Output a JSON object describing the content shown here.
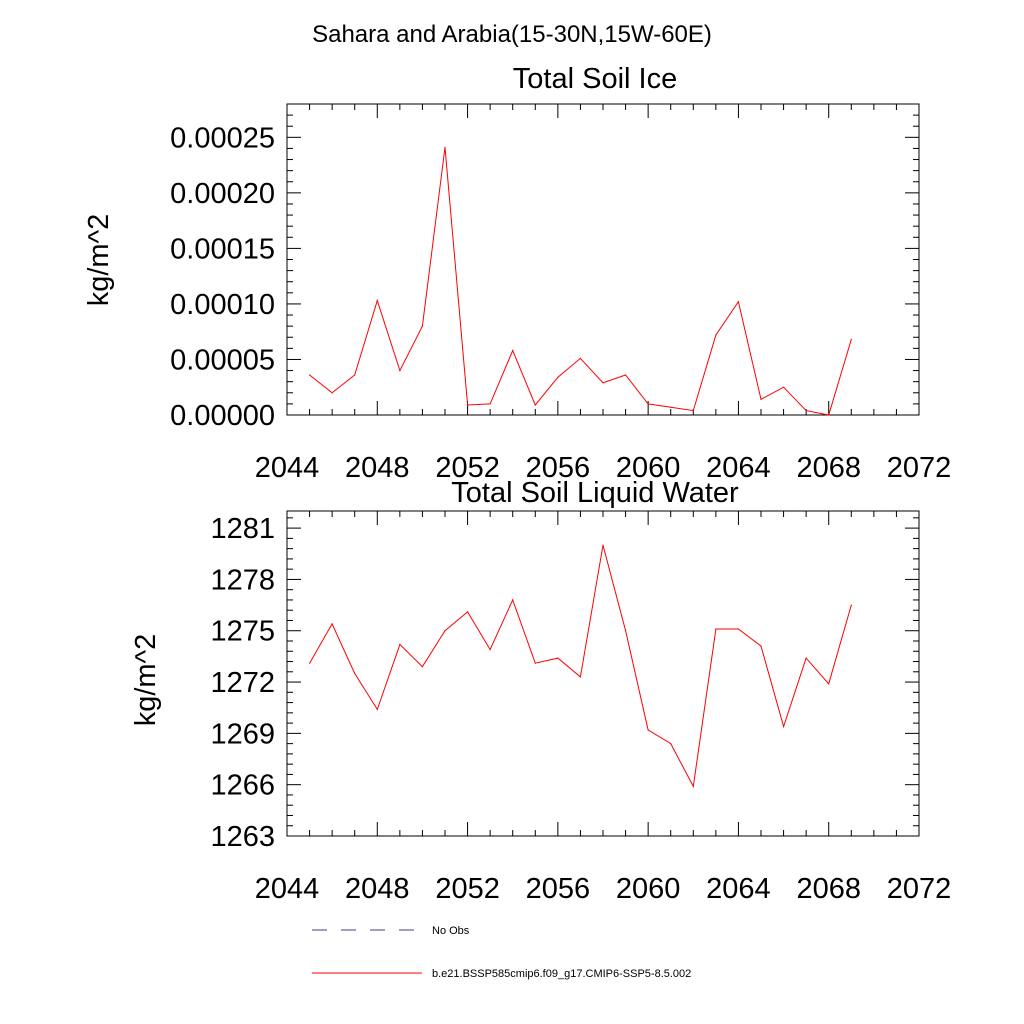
{
  "figure": {
    "suptitle": "Sahara and Arabia(15-30N,15W-60E)"
  },
  "legend": {
    "items": [
      {
        "label": "No Obs",
        "color": "#3c3c8c",
        "style": "dashed"
      },
      {
        "label": "b.e21.BSSP585cmip6.f09_g17.CMIP6-SSP5-8.5.002",
        "color": "#ff0000",
        "style": "solid"
      }
    ]
  },
  "chart_data": [
    {
      "type": "line",
      "title": "Total Soil Ice",
      "xlabel": "",
      "ylabel": "kg/m^2",
      "xlim": [
        2044,
        2072
      ],
      "ylim": [
        0,
        0.00028
      ],
      "xticks": [
        2044,
        2048,
        2052,
        2056,
        2060,
        2064,
        2068,
        2072
      ],
      "xtick_labels": [
        "2044",
        "2048",
        "2052",
        "2056",
        "2060",
        "2064",
        "2068",
        "2072"
      ],
      "yticks": [
        0,
        5e-05,
        0.0001,
        0.00015,
        0.0002,
        0.00025
      ],
      "ytick_labels": [
        "0.00000",
        "0.00005",
        "0.00010",
        "0.00015",
        "0.00020",
        "0.00025"
      ],
      "grid": false,
      "series": [
        {
          "name": "b.e21.BSSP585cmip6.f09_g17.CMIP6-SSP5-8.5.002",
          "color": "#ff0000",
          "x": [
            2045,
            2046,
            2047,
            2048,
            2049,
            2050,
            2051,
            2052,
            2053,
            2054,
            2055,
            2056,
            2057,
            2058,
            2059,
            2060,
            2061,
            2062,
            2063,
            2064,
            2065,
            2066,
            2067,
            2068,
            2069
          ],
          "y": [
            3.6e-05,
            2e-05,
            3.6e-05,
            0.000103,
            4e-05,
            8e-05,
            0.000241,
            9e-06,
            1e-05,
            5.8e-05,
            9e-06,
            3.4e-05,
            5.1e-05,
            2.9e-05,
            3.6e-05,
            1e-05,
            7e-06,
            4e-06,
            7.2e-05,
            0.000102,
            1.4e-05,
            2.5e-05,
            4e-06,
            0.0,
            6.8e-05
          ]
        }
      ]
    },
    {
      "type": "line",
      "title": "Total Soil Liquid Water",
      "xlabel": "",
      "ylabel": "kg/m^2",
      "xlim": [
        2044,
        2072
      ],
      "ylim": [
        1263,
        1282
      ],
      "xticks": [
        2044,
        2048,
        2052,
        2056,
        2060,
        2064,
        2068,
        2072
      ],
      "xtick_labels": [
        "2044",
        "2048",
        "2052",
        "2056",
        "2060",
        "2064",
        "2068",
        "2072"
      ],
      "yticks": [
        1263,
        1266,
        1269,
        1272,
        1275,
        1278,
        1281
      ],
      "ytick_labels": [
        "1263",
        "1266",
        "1269",
        "1272",
        "1275",
        "1278",
        "1281"
      ],
      "grid": false,
      "series": [
        {
          "name": "b.e21.BSSP585cmip6.f09_g17.CMIP6-SSP5-8.5.002",
          "color": "#ff0000",
          "x": [
            2045,
            2046,
            2047,
            2048,
            2049,
            2050,
            2051,
            2052,
            2053,
            2054,
            2055,
            2056,
            2057,
            2058,
            2059,
            2060,
            2061,
            2062,
            2063,
            2064,
            2065,
            2066,
            2067,
            2068,
            2069
          ],
          "y": [
            1273.1,
            1275.4,
            1272.5,
            1270.4,
            1274.2,
            1272.9,
            1275.0,
            1276.1,
            1273.9,
            1276.8,
            1273.1,
            1273.4,
            1272.3,
            1280.0,
            1275.0,
            1269.2,
            1268.4,
            1265.9,
            1275.1,
            1275.1,
            1274.1,
            1269.4,
            1273.4,
            1271.9,
            1276.5
          ]
        }
      ]
    }
  ]
}
